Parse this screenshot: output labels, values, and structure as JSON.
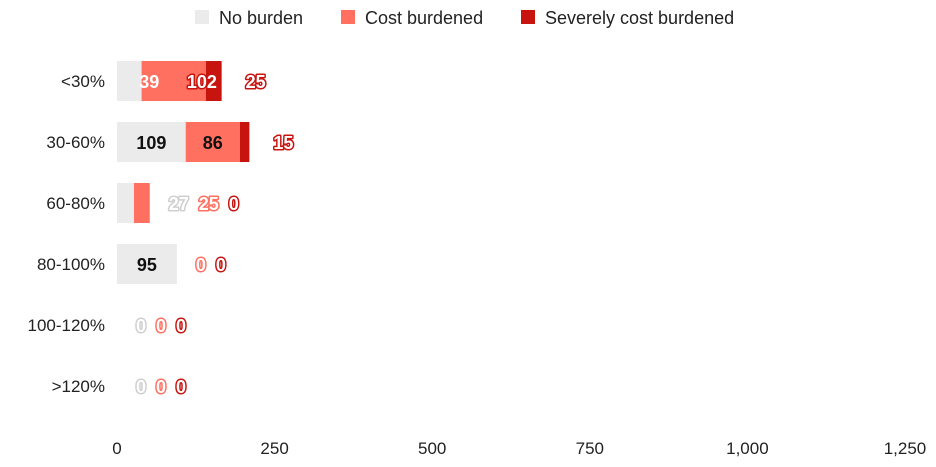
{
  "chart_data": {
    "type": "bar",
    "orientation": "horizontal",
    "stacked": true,
    "title": "",
    "xlabel": "",
    "ylabel": "",
    "categories": [
      "<30%",
      "30-60%",
      "60-80%",
      "80-100%",
      "100-120%",
      ">120%"
    ],
    "series": [
      {
        "name": "No burden",
        "color": "#ebebeb",
        "label_color": "#ffffff",
        "label_stroke": "#cfcfcf",
        "values": [
          39,
          109,
          27,
          95,
          0,
          0
        ]
      },
      {
        "name": "Cost burdened",
        "color": "#ff7060",
        "label_color": "#ffffff",
        "label_stroke": "#ff7060",
        "values": [
          102,
          86,
          25,
          0,
          0,
          0
        ]
      },
      {
        "name": "Severely cost burdened",
        "color": "#c8140f",
        "label_color": "#ffffff",
        "label_stroke": "#c8140f",
        "values": [
          25,
          15,
          0,
          0,
          0,
          0
        ]
      }
    ],
    "value_labels": [
      [
        "39",
        "102",
        "25"
      ],
      [
        "109",
        "86",
        "15"
      ],
      [
        "27",
        "25",
        "0"
      ],
      [
        "95",
        "0",
        "0"
      ],
      [
        "0",
        "0",
        "0"
      ],
      [
        "0",
        "0",
        "0"
      ]
    ],
    "xlim": [
      0,
      1250
    ],
    "x_ticks": [
      0,
      250,
      500,
      750,
      1000,
      1250
    ],
    "x_tick_labels": [
      "0",
      "250",
      "500",
      "750",
      "1,000",
      "1,250"
    ],
    "grid": false,
    "legend_position": "top"
  }
}
